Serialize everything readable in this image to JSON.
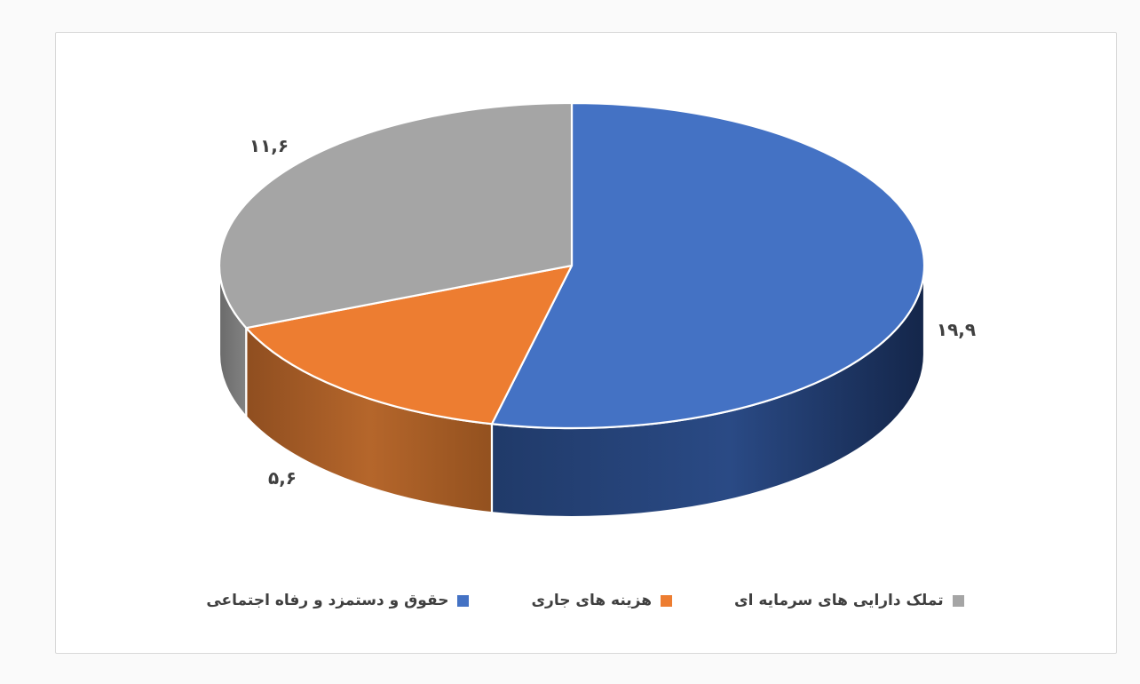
{
  "chart_data": {
    "type": "pie",
    "style": "3d",
    "title": "",
    "start_angle_deg": 0,
    "direction": "clockwise",
    "legend_position": "bottom",
    "slices": [
      {
        "label": "حقوق و دستمزد و رفاه اجتماعی",
        "value": 19.9,
        "value_label": "۱۹,۹",
        "color": "#4472C4"
      },
      {
        "label": "هزینه های جاری",
        "value": 5.6,
        "value_label": "۵,۶",
        "color": "#ED7D31"
      },
      {
        "label": "تملک دارایی های سرمایه ای",
        "value": 11.6,
        "value_label": "۱۱,۶",
        "color": "#A5A5A5"
      }
    ]
  },
  "panel": {
    "background": "#ffffff",
    "border_color": "#d9d9d9",
    "page_background": "#fafafa"
  },
  "text_color": "#404040"
}
